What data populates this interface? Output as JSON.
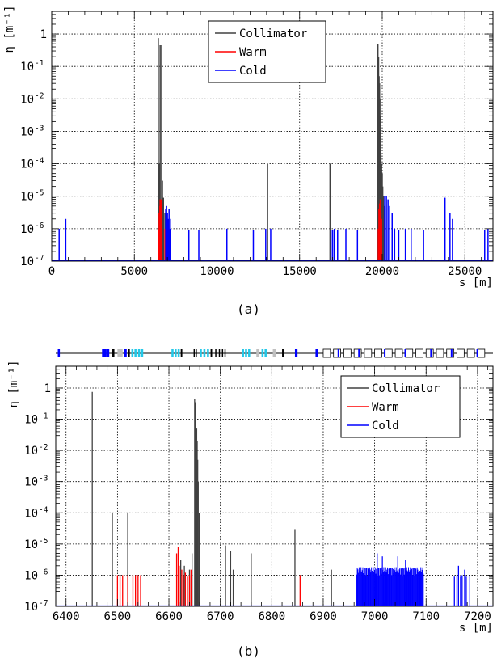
{
  "colors": {
    "collimator": "#404040",
    "warm": "#ff0000",
    "cold": "#0000ff",
    "grid": "#000000",
    "lattice_cyan": "#22c8e8",
    "lattice_gray": "#c0c0c0",
    "lattice_blue": "#0000ff"
  },
  "captions": {
    "a": "(a)",
    "b": "(b)"
  },
  "chart_data": [
    {
      "type": "bar",
      "panel": "a",
      "ylabel": "η [m⁻¹]",
      "xlabel": "s [m]",
      "yscale": "log",
      "ylim": [
        1e-07,
        5
      ],
      "xlim": [
        0,
        26700
      ],
      "xticks": [
        0,
        5000,
        10000,
        15000,
        20000,
        25000
      ],
      "yticks": [
        {
          "v": 1e-07,
          "t": "10",
          "e": "-7"
        },
        {
          "v": 1e-06,
          "t": "10",
          "e": "-6"
        },
        {
          "v": 1e-05,
          "t": "10",
          "e": "-5"
        },
        {
          "v": 0.0001,
          "t": "10",
          "e": "-4"
        },
        {
          "v": 0.001,
          "t": "10",
          "e": "-3"
        },
        {
          "v": 0.01,
          "t": "10",
          "e": "-2"
        },
        {
          "v": 0.1,
          "t": "10",
          "e": "-1"
        },
        {
          "v": 1,
          "t": "1",
          "e": ""
        }
      ],
      "grid": true,
      "legend": {
        "position": "top-center",
        "entries": [
          "Collimator",
          "Warm",
          "Cold"
        ]
      },
      "series": [
        {
          "name": "Collimator",
          "points": [
            [
              6450,
              0.75
            ],
            [
              6490,
              0.0001
            ],
            [
              6520,
              0.0001
            ],
            [
              6560,
              0.45
            ],
            [
              6650,
              0.45
            ],
            [
              6660,
              0.0001
            ],
            [
              6700,
              3e-05
            ],
            [
              6760,
              9e-06
            ],
            [
              6850,
              3e-06
            ],
            [
              13060,
              0.0001
            ],
            [
              16840,
              0.0001
            ],
            [
              19740,
              0.5
            ],
            [
              19780,
              0.2
            ],
            [
              19810,
              0.05
            ],
            [
              19840,
              0.03
            ],
            [
              19860,
              0.01
            ],
            [
              19880,
              0.003
            ],
            [
              19900,
              0.001
            ],
            [
              19920,
              0.0002
            ],
            [
              19960,
              0.0001
            ],
            [
              20000,
              5e-05
            ],
            [
              20030,
              2e-05
            ],
            [
              20070,
              1e-05
            ],
            [
              20110,
              5e-06
            ]
          ]
        },
        {
          "name": "Warm",
          "points": [
            [
              6480,
              1e-06
            ],
            [
              6500,
              3e-06
            ],
            [
              6520,
              1e-06
            ],
            [
              6540,
              5e-06
            ],
            [
              6560,
              8e-06
            ],
            [
              6580,
              3e-06
            ],
            [
              6600,
              5e-06
            ],
            [
              6620,
              8e-06
            ],
            [
              6640,
              5e-06
            ],
            [
              6660,
              2e-06
            ],
            [
              6850,
              1e-06
            ],
            [
              19760,
              1e-06
            ],
            [
              19800,
              4e-06
            ],
            [
              19840,
              6e-06
            ],
            [
              19880,
              8e-06
            ],
            [
              19920,
              3e-06
            ],
            [
              19960,
              2e-06
            ]
          ]
        },
        {
          "name": "Cold",
          "points": [
            [
              450,
              1e-06
            ],
            [
              850,
              2e-06
            ],
            [
              6900,
              4e-06
            ],
            [
              6950,
              5e-06
            ],
            [
              7000,
              3e-06
            ],
            [
              7050,
              2e-06
            ],
            [
              7100,
              4e-06
            ],
            [
              7150,
              1e-06
            ],
            [
              7200,
              2e-06
            ],
            [
              8300,
              9e-07
            ],
            [
              8900,
              9e-07
            ],
            [
              10600,
              1e-06
            ],
            [
              12200,
              9e-07
            ],
            [
              12950,
              1e-06
            ],
            [
              13250,
              1e-06
            ],
            [
              16900,
              9e-07
            ],
            [
              17000,
              9e-07
            ],
            [
              17100,
              1e-06
            ],
            [
              17300,
              9e-07
            ],
            [
              17800,
              1e-06
            ],
            [
              18500,
              9e-07
            ],
            [
              20150,
              1e-05
            ],
            [
              20250,
              1e-05
            ],
            [
              20350,
              8e-06
            ],
            [
              20450,
              5e-06
            ],
            [
              20600,
              3e-06
            ],
            [
              20750,
              1e-06
            ],
            [
              21000,
              9e-07
            ],
            [
              21400,
              1e-06
            ],
            [
              21750,
              1e-06
            ],
            [
              22500,
              9e-07
            ],
            [
              23800,
              9e-06
            ],
            [
              24100,
              3e-06
            ],
            [
              24250,
              2e-06
            ],
            [
              26200,
              9e-07
            ],
            [
              26400,
              1e-06
            ]
          ]
        }
      ]
    },
    {
      "type": "bar",
      "panel": "b",
      "ylabel": "η [m⁻¹]",
      "xlabel": "s [m]",
      "yscale": "log",
      "ylim": [
        1e-07,
        5
      ],
      "xlim": [
        6380,
        7230
      ],
      "xticks": [
        6400,
        6500,
        6600,
        6700,
        6800,
        6900,
        7000,
        7100,
        7200
      ],
      "yticks": [
        {
          "v": 1e-07,
          "t": "10",
          "e": "-7"
        },
        {
          "v": 1e-06,
          "t": "10",
          "e": "-6"
        },
        {
          "v": 1e-05,
          "t": "10",
          "e": "-5"
        },
        {
          "v": 0.0001,
          "t": "10",
          "e": "-4"
        },
        {
          "v": 0.001,
          "t": "10",
          "e": "-3"
        },
        {
          "v": 0.01,
          "t": "10",
          "e": "-2"
        },
        {
          "v": 0.1,
          "t": "10",
          "e": "-1"
        },
        {
          "v": 1,
          "t": "1",
          "e": ""
        }
      ],
      "grid": true,
      "legend": {
        "position": "top-right",
        "entries": [
          "Collimator",
          "Warm",
          "Cold"
        ]
      },
      "series": [
        {
          "name": "Collimator",
          "points": [
            [
              6451,
              0.75
            ],
            [
              6490,
              0.0001
            ],
            [
              6520,
              0.0001
            ],
            [
              6623,
              3e-06
            ],
            [
              6630,
              2e-06
            ],
            [
              6640,
              1.5e-06
            ],
            [
              6645,
              5e-06
            ],
            [
              6650,
              0.45
            ],
            [
              6652,
              0.35
            ],
            [
              6654,
              0.05
            ],
            [
              6655,
              0.02
            ],
            [
              6656,
              0.005
            ],
            [
              6657,
              0.001
            ],
            [
              6659,
              0.0001
            ],
            [
              6710,
              9e-06
            ],
            [
              6720,
              6e-06
            ],
            [
              6725,
              1.5e-06
            ],
            [
              6760,
              5e-06
            ],
            [
              6845,
              3e-05
            ],
            [
              6916,
              1.5e-06
            ]
          ]
        },
        {
          "name": "Warm",
          "points": [
            [
              6500,
              1e-06
            ],
            [
              6505,
              1e-06
            ],
            [
              6510,
              1e-06
            ],
            [
              6520,
              1e-06
            ],
            [
              6530,
              1e-06
            ],
            [
              6535,
              1e-06
            ],
            [
              6540,
              1e-06
            ],
            [
              6545,
              1e-06
            ],
            [
              6615,
              5e-06
            ],
            [
              6618,
              8e-06
            ],
            [
              6620,
              2e-06
            ],
            [
              6625,
              1.5e-06
            ],
            [
              6628,
              1e-06
            ],
            [
              6632,
              1.2e-06
            ],
            [
              6636,
              9e-07
            ],
            [
              6640,
              1e-06
            ],
            [
              6643,
              1.5e-06
            ],
            [
              6855,
              1e-06
            ]
          ],
          "bands": []
        },
        {
          "name": "Cold",
          "points": [
            [
              7155,
              9e-07
            ],
            [
              7160,
              1e-06
            ],
            [
              7163,
              2e-06
            ],
            [
              7167,
              9e-07
            ],
            [
              7170,
              1e-06
            ],
            [
              7175,
              1.5e-06
            ],
            [
              7178,
              9e-07
            ],
            [
              7185,
              1e-06
            ]
          ],
          "bands": [
            {
              "from": 6965,
              "to": 7095,
              "level": 1e-06
            }
          ]
        }
      ],
      "lattice": [
        {
          "from": 6384,
          "to": 6388,
          "c": "blue"
        },
        {
          "from": 6470,
          "to": 6478,
          "c": "blue"
        },
        {
          "from": 6478,
          "to": 6484,
          "c": "blue"
        },
        {
          "from": 6490,
          "to": 6494,
          "c": "black"
        },
        {
          "from": 6500,
          "to": 6510,
          "c": "gray"
        },
        {
          "from": 6512,
          "to": 6518,
          "c": "blue"
        },
        {
          "from": 6520,
          "to": 6524,
          "c": "black"
        },
        {
          "from": 6527,
          "to": 6531,
          "c": "cyan"
        },
        {
          "from": 6533,
          "to": 6537,
          "c": "cyan"
        },
        {
          "from": 6540,
          "to": 6544,
          "c": "cyan"
        },
        {
          "from": 6546,
          "to": 6550,
          "c": "cyan"
        },
        {
          "from": 6605,
          "to": 6609,
          "c": "cyan"
        },
        {
          "from": 6611,
          "to": 6615,
          "c": "cyan"
        },
        {
          "from": 6617,
          "to": 6621,
          "c": "cyan"
        },
        {
          "from": 6623,
          "to": 6626,
          "c": "black"
        },
        {
          "from": 6648,
          "to": 6650,
          "c": "black"
        },
        {
          "from": 6652,
          "to": 6654,
          "c": "black"
        },
        {
          "from": 6660,
          "to": 6664,
          "c": "cyan"
        },
        {
          "from": 6667,
          "to": 6671,
          "c": "cyan"
        },
        {
          "from": 6674,
          "to": 6678,
          "c": "cyan"
        },
        {
          "from": 6681,
          "to": 6684,
          "c": "black"
        },
        {
          "from": 6690,
          "to": 6692,
          "c": "black"
        },
        {
          "from": 6697,
          "to": 6699,
          "c": "black"
        },
        {
          "from": 6703,
          "to": 6705,
          "c": "black"
        },
        {
          "from": 6708,
          "to": 6710,
          "c": "black"
        },
        {
          "from": 6742,
          "to": 6746,
          "c": "cyan"
        },
        {
          "from": 6748,
          "to": 6752,
          "c": "cyan"
        },
        {
          "from": 6754,
          "to": 6758,
          "c": "cyan"
        },
        {
          "from": 6770,
          "to": 6776,
          "c": "gray"
        },
        {
          "from": 6780,
          "to": 6784,
          "c": "cyan"
        },
        {
          "from": 6786,
          "to": 6790,
          "c": "cyan"
        },
        {
          "from": 6802,
          "to": 6808,
          "c": "gray"
        },
        {
          "from": 6820,
          "to": 6824,
          "c": "black"
        },
        {
          "from": 6845,
          "to": 6850,
          "c": "blue"
        },
        {
          "from": 6885,
          "to": 6890,
          "c": "blue"
        }
      ],
      "lattice_boxes": [
        6900,
        6920,
        6940,
        6960,
        6980,
        7000,
        7020,
        7040,
        7060,
        7080,
        7100,
        7120,
        7140,
        7160,
        7180,
        7200
      ],
      "lattice_box_blue": [
        6928,
        6968,
        7018,
        7058,
        7108,
        7148,
        7198
      ]
    }
  ]
}
